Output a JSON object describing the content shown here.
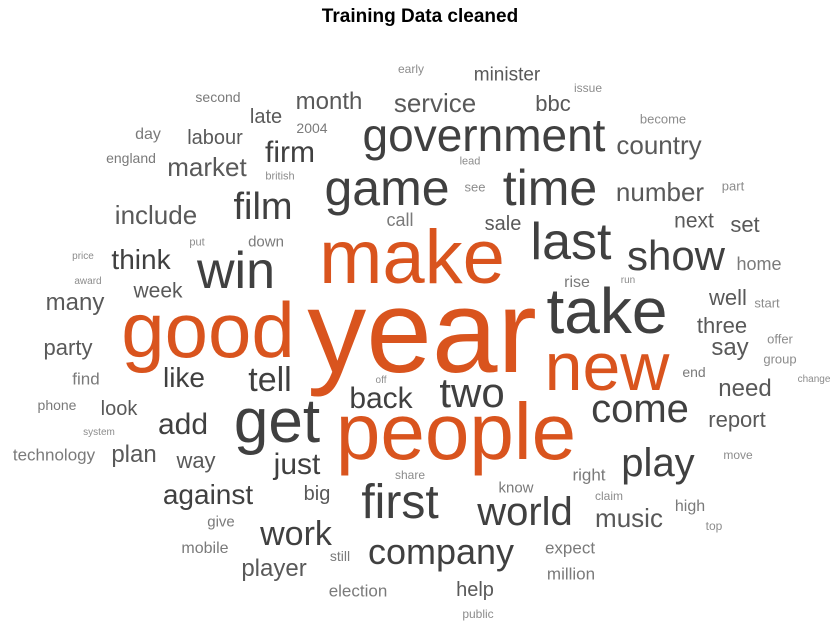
{
  "chart_data": {
    "type": "wordcloud",
    "title": "Training Data cleaned",
    "colors": {
      "top": "#d9541e",
      "high": "#404040",
      "mid": "#595959",
      "low": "#7a7a7a",
      "rare": "#8c8c8c"
    },
    "words": [
      {
        "text": "year",
        "weight": 100,
        "tier": "top"
      },
      {
        "text": "make",
        "weight": 82,
        "tier": "top"
      },
      {
        "text": "people",
        "weight": 80,
        "tier": "top"
      },
      {
        "text": "good",
        "weight": 78,
        "tier": "top"
      },
      {
        "text": "new",
        "weight": 70,
        "tier": "top"
      },
      {
        "text": "take",
        "weight": 64,
        "tier": "high"
      },
      {
        "text": "get",
        "weight": 62,
        "tier": "high"
      },
      {
        "text": "last",
        "weight": 52,
        "tier": "high"
      },
      {
        "text": "win",
        "weight": 52,
        "tier": "high"
      },
      {
        "text": "time",
        "weight": 50,
        "tier": "high"
      },
      {
        "text": "game",
        "weight": 50,
        "tier": "high"
      },
      {
        "text": "first",
        "weight": 46,
        "tier": "high"
      },
      {
        "text": "government",
        "weight": 46,
        "tier": "high"
      },
      {
        "text": "show",
        "weight": 42,
        "tier": "high"
      },
      {
        "text": "two",
        "weight": 42,
        "tier": "high"
      },
      {
        "text": "play",
        "weight": 40,
        "tier": "high"
      },
      {
        "text": "come",
        "weight": 40,
        "tier": "high"
      },
      {
        "text": "world",
        "weight": 40,
        "tier": "high"
      },
      {
        "text": "film",
        "weight": 38,
        "tier": "high"
      },
      {
        "text": "company",
        "weight": 36,
        "tier": "high"
      },
      {
        "text": "tell",
        "weight": 34,
        "tier": "high"
      },
      {
        "text": "work",
        "weight": 34,
        "tier": "high"
      },
      {
        "text": "back",
        "weight": 30,
        "tier": "high"
      },
      {
        "text": "firm",
        "weight": 30,
        "tier": "high"
      },
      {
        "text": "add",
        "weight": 30,
        "tier": "high"
      },
      {
        "text": "just",
        "weight": 30,
        "tier": "high"
      },
      {
        "text": "against",
        "weight": 28,
        "tier": "high"
      },
      {
        "text": "think",
        "weight": 28,
        "tier": "high"
      },
      {
        "text": "like",
        "weight": 28,
        "tier": "high"
      },
      {
        "text": "number",
        "weight": 26,
        "tier": "mid"
      },
      {
        "text": "service",
        "weight": 26,
        "tier": "mid"
      },
      {
        "text": "include",
        "weight": 26,
        "tier": "mid"
      },
      {
        "text": "market",
        "weight": 26,
        "tier": "mid"
      },
      {
        "text": "country",
        "weight": 26,
        "tier": "mid"
      },
      {
        "text": "music",
        "weight": 26,
        "tier": "mid"
      },
      {
        "text": "month",
        "weight": 24,
        "tier": "mid"
      },
      {
        "text": "player",
        "weight": 24,
        "tier": "mid"
      },
      {
        "text": "many",
        "weight": 24,
        "tier": "mid"
      },
      {
        "text": "say",
        "weight": 24,
        "tier": "mid"
      },
      {
        "text": "need",
        "weight": 24,
        "tier": "mid"
      },
      {
        "text": "plan",
        "weight": 24,
        "tier": "mid"
      },
      {
        "text": "way",
        "weight": 22,
        "tier": "mid"
      },
      {
        "text": "bbc",
        "weight": 22,
        "tier": "mid"
      },
      {
        "text": "set",
        "weight": 22,
        "tier": "mid"
      },
      {
        "text": "party",
        "weight": 22,
        "tier": "mid"
      },
      {
        "text": "report",
        "weight": 22,
        "tier": "mid"
      },
      {
        "text": "three",
        "weight": 22,
        "tier": "mid"
      },
      {
        "text": "well",
        "weight": 22,
        "tier": "mid"
      },
      {
        "text": "week",
        "weight": 21,
        "tier": "mid"
      },
      {
        "text": "next",
        "weight": 21,
        "tier": "mid"
      },
      {
        "text": "look",
        "weight": 20,
        "tier": "mid"
      },
      {
        "text": "sale",
        "weight": 20,
        "tier": "mid"
      },
      {
        "text": "late",
        "weight": 20,
        "tier": "mid"
      },
      {
        "text": "labour",
        "weight": 20,
        "tier": "mid"
      },
      {
        "text": "big",
        "weight": 20,
        "tier": "mid"
      },
      {
        "text": "help",
        "weight": 20,
        "tier": "mid"
      },
      {
        "text": "minister",
        "weight": 19,
        "tier": "mid"
      },
      {
        "text": "call",
        "weight": 18,
        "tier": "low"
      },
      {
        "text": "home",
        "weight": 18,
        "tier": "low"
      },
      {
        "text": "find",
        "weight": 17,
        "tier": "low"
      },
      {
        "text": "technology",
        "weight": 17,
        "tier": "low"
      },
      {
        "text": "election",
        "weight": 17,
        "tier": "low"
      },
      {
        "text": "expect",
        "weight": 17,
        "tier": "low"
      },
      {
        "text": "right",
        "weight": 17,
        "tier": "low"
      },
      {
        "text": "million",
        "weight": 17,
        "tier": "low"
      },
      {
        "text": "mobile",
        "weight": 16,
        "tier": "low"
      },
      {
        "text": "day",
        "weight": 16,
        "tier": "low"
      },
      {
        "text": "rise",
        "weight": 16,
        "tier": "low"
      },
      {
        "text": "high",
        "weight": 16,
        "tier": "low"
      },
      {
        "text": "down",
        "weight": 15,
        "tier": "low"
      },
      {
        "text": "know",
        "weight": 15,
        "tier": "low"
      },
      {
        "text": "give",
        "weight": 15,
        "tier": "low"
      },
      {
        "text": "still",
        "weight": 14,
        "tier": "low"
      },
      {
        "text": "second",
        "weight": 14,
        "tier": "low"
      },
      {
        "text": "england",
        "weight": 14,
        "tier": "low"
      },
      {
        "text": "2004",
        "weight": 14,
        "tier": "low"
      },
      {
        "text": "phone",
        "weight": 14,
        "tier": "low"
      },
      {
        "text": "end",
        "weight": 14,
        "tier": "low"
      },
      {
        "text": "part",
        "weight": 13,
        "tier": "rare"
      },
      {
        "text": "become",
        "weight": 13,
        "tier": "rare"
      },
      {
        "text": "see",
        "weight": 13,
        "tier": "rare"
      },
      {
        "text": "offer",
        "weight": 13,
        "tier": "rare"
      },
      {
        "text": "group",
        "weight": 13,
        "tier": "rare"
      },
      {
        "text": "start",
        "weight": 13,
        "tier": "rare"
      },
      {
        "text": "early",
        "weight": 12,
        "tier": "rare"
      },
      {
        "text": "issue",
        "weight": 12,
        "tier": "rare"
      },
      {
        "text": "share",
        "weight": 12,
        "tier": "rare"
      },
      {
        "text": "claim",
        "weight": 12,
        "tier": "rare"
      },
      {
        "text": "public",
        "weight": 12,
        "tier": "rare"
      },
      {
        "text": "move",
        "weight": 12,
        "tier": "rare"
      },
      {
        "text": "top",
        "weight": 12,
        "tier": "rare"
      },
      {
        "text": "lead",
        "weight": 11,
        "tier": "rare"
      },
      {
        "text": "british",
        "weight": 11,
        "tier": "rare"
      },
      {
        "text": "put",
        "weight": 11,
        "tier": "rare"
      },
      {
        "text": "price",
        "weight": 10,
        "tier": "rare"
      },
      {
        "text": "award",
        "weight": 10,
        "tier": "rare"
      },
      {
        "text": "system",
        "weight": 10,
        "tier": "rare"
      },
      {
        "text": "off",
        "weight": 10,
        "tier": "rare"
      },
      {
        "text": "run",
        "weight": 10,
        "tier": "rare"
      },
      {
        "text": "change",
        "weight": 10,
        "tier": "rare"
      }
    ]
  }
}
